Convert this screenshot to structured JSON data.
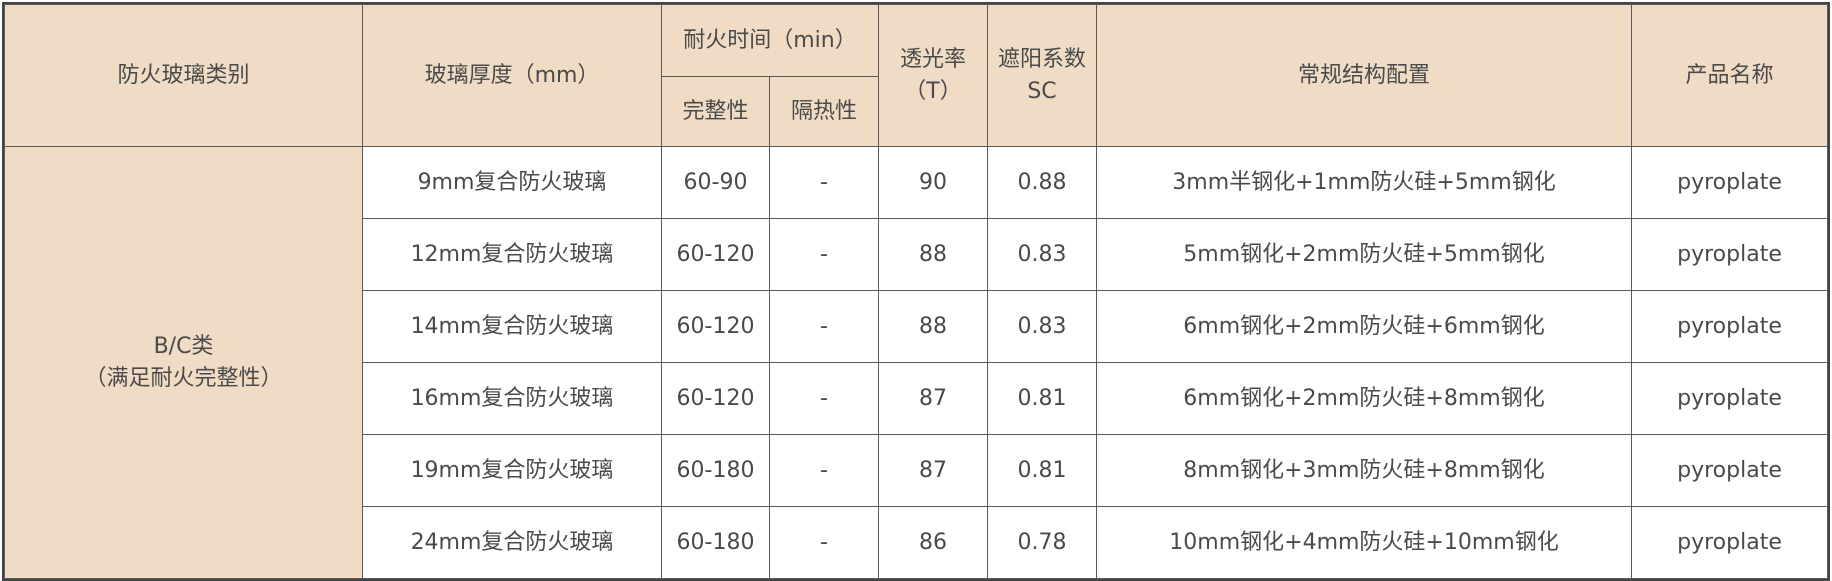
{
  "header": {
    "category": "防火玻璃类别",
    "thickness": "玻璃厚度（mm）",
    "fire_time": "耐火时间（min）",
    "integrity": "完整性",
    "insulation": "隔热性",
    "transmittance": "透光率（T）",
    "shading": "遮阳系数SC",
    "structure": "常规结构配置",
    "product": "产品名称"
  },
  "category": {
    "line1": "B/C类",
    "line2": "（满足耐火完整性）"
  },
  "colors": {
    "header_bg": "#f0dcc4",
    "border": "#5a5a5a",
    "text": "#4a4a4a"
  },
  "rows": [
    {
      "thickness": "9mm复合防火玻璃",
      "integrity": "60-90",
      "insulation": "-",
      "transmittance": "90",
      "sc": "0.88",
      "structure": "3mm半钢化+1mm防火硅+5mm钢化",
      "product": "pyroplate"
    },
    {
      "thickness": "12mm复合防火玻璃",
      "integrity": "60-120",
      "insulation": "-",
      "transmittance": "88",
      "sc": "0.83",
      "structure": "5mm钢化+2mm防火硅+5mm钢化",
      "product": "pyroplate"
    },
    {
      "thickness": "14mm复合防火玻璃",
      "integrity": "60-120",
      "insulation": "-",
      "transmittance": "88",
      "sc": "0.83",
      "structure": "6mm钢化+2mm防火硅+6mm钢化",
      "product": "pyroplate"
    },
    {
      "thickness": "16mm复合防火玻璃",
      "integrity": "60-120",
      "insulation": "-",
      "transmittance": "87",
      "sc": "0.81",
      "structure": "6mm钢化+2mm防火硅+8mm钢化",
      "product": "pyroplate"
    },
    {
      "thickness": "19mm复合防火玻璃",
      "integrity": "60-180",
      "insulation": "-",
      "transmittance": "87",
      "sc": "0.81",
      "structure": "8mm钢化+3mm防火硅+8mm钢化",
      "product": "pyroplate"
    },
    {
      "thickness": "24mm复合防火玻璃",
      "integrity": "60-180",
      "insulation": "-",
      "transmittance": "86",
      "sc": "0.78",
      "structure": "10mm钢化+4mm防火硅+10mm钢化",
      "product": "pyroplate"
    }
  ]
}
